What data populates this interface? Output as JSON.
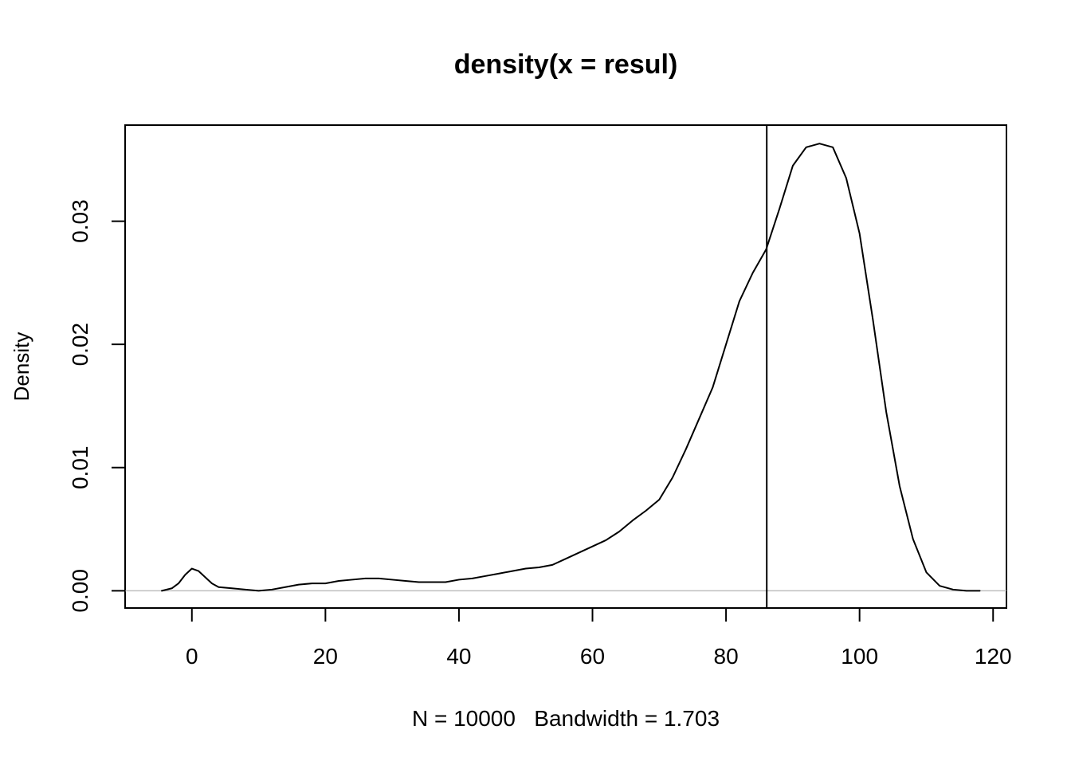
{
  "chart_data": {
    "type": "line",
    "title": "density(x = resul)",
    "xlabel": "N = 10000   Bandwidth = 1.703",
    "ylabel": "Density",
    "xlim": [
      -10,
      122
    ],
    "ylim": [
      -0.0014,
      0.0378
    ],
    "x_ticks": [
      0,
      20,
      40,
      60,
      80,
      100,
      120
    ],
    "x_tick_labels": [
      "0",
      "20",
      "40",
      "60",
      "80",
      "100",
      "120"
    ],
    "y_ticks": [
      0.0,
      0.01,
      0.02,
      0.03
    ],
    "y_tick_labels": [
      "0.00",
      "0.01",
      "0.02",
      "0.03"
    ],
    "grid": false,
    "baseline": {
      "y": 0,
      "color": "#bebebe"
    },
    "vline": {
      "x": 86.1,
      "color": "#000000"
    },
    "series": [
      {
        "color": "#000000",
        "x": [
          -4.5,
          -3,
          -2,
          -1,
          0,
          1,
          2,
          3,
          4,
          6,
          8,
          10,
          12,
          14,
          16,
          18,
          20,
          22,
          24,
          26,
          28,
          30,
          32,
          34,
          36,
          38,
          40,
          42,
          44,
          46,
          48,
          50,
          52,
          54,
          56,
          58,
          60,
          62,
          64,
          66,
          68,
          70,
          72,
          74,
          76,
          78,
          80,
          82,
          84,
          86,
          88,
          90,
          92,
          94,
          96,
          98,
          100,
          102,
          104,
          106,
          108,
          110,
          112,
          114,
          116,
          118
        ],
        "y": [
          0.0,
          0.0002,
          0.0006,
          0.0013,
          0.0018,
          0.0016,
          0.0011,
          0.0006,
          0.0003,
          0.0002,
          0.0001,
          0.0,
          0.0001,
          0.0003,
          0.0005,
          0.0006,
          0.0006,
          0.0008,
          0.0009,
          0.001,
          0.001,
          0.0009,
          0.0008,
          0.0007,
          0.0007,
          0.0007,
          0.0009,
          0.001,
          0.0012,
          0.0014,
          0.0016,
          0.0018,
          0.0019,
          0.0021,
          0.0026,
          0.0031,
          0.0036,
          0.0041,
          0.0048,
          0.0057,
          0.0065,
          0.0074,
          0.0092,
          0.0115,
          0.014,
          0.0165,
          0.02,
          0.0235,
          0.0258,
          0.0277,
          0.031,
          0.0345,
          0.036,
          0.0363,
          0.036,
          0.0335,
          0.029,
          0.022,
          0.0145,
          0.0085,
          0.0042,
          0.0015,
          0.0004,
          0.0001,
          0.0,
          0.0
        ]
      }
    ]
  }
}
